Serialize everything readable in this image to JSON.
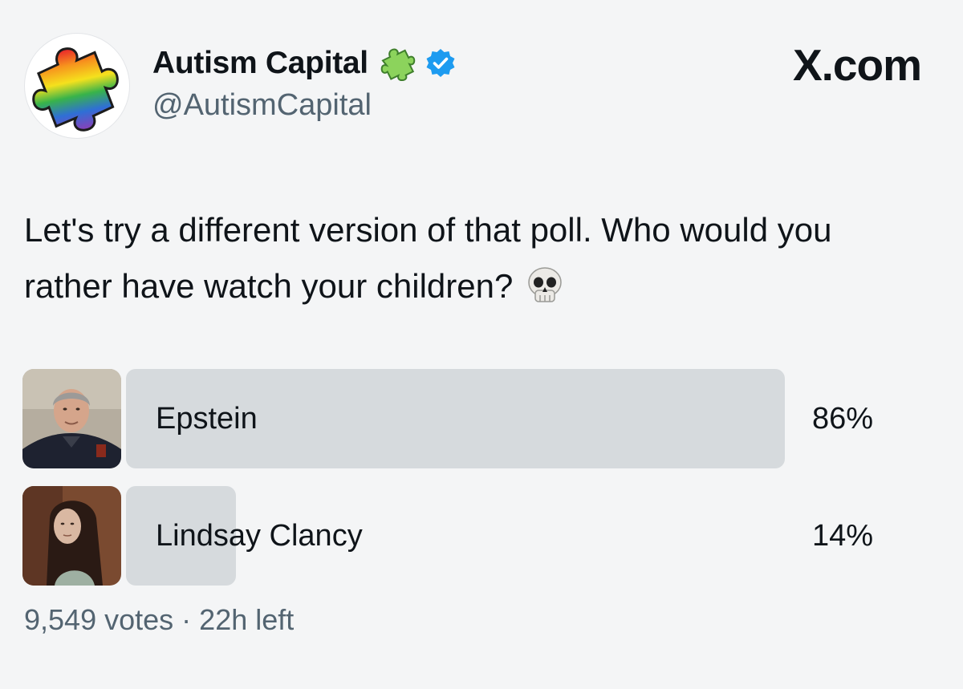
{
  "header": {
    "display_name": "Autism Capital",
    "handle": "@AutismCapital",
    "site": "X.com",
    "avatar_icon": "rainbow-puzzle-piece-icon",
    "name_badge_icon": "green-puzzle-piece-icon",
    "verified_icon": "verified-check-icon",
    "verified_color": "#1d9bf0"
  },
  "tweet": {
    "text": "Let's try a different version of that poll. Who would you rather have watch your children?",
    "emoji_icon": "skull-emoji-icon"
  },
  "poll": {
    "bar_color": "#d6dadd",
    "options": [
      {
        "label": "Epstein",
        "percent_text": "86%",
        "percent": 86,
        "thumbnail_icon": "man-portrait-photo"
      },
      {
        "label": "Lindsay Clancy",
        "percent_text": "14%",
        "percent": 14,
        "thumbnail_icon": "woman-portrait-photo"
      }
    ],
    "votes": "9,549 votes",
    "separator": "·",
    "time_left": "22h left"
  }
}
